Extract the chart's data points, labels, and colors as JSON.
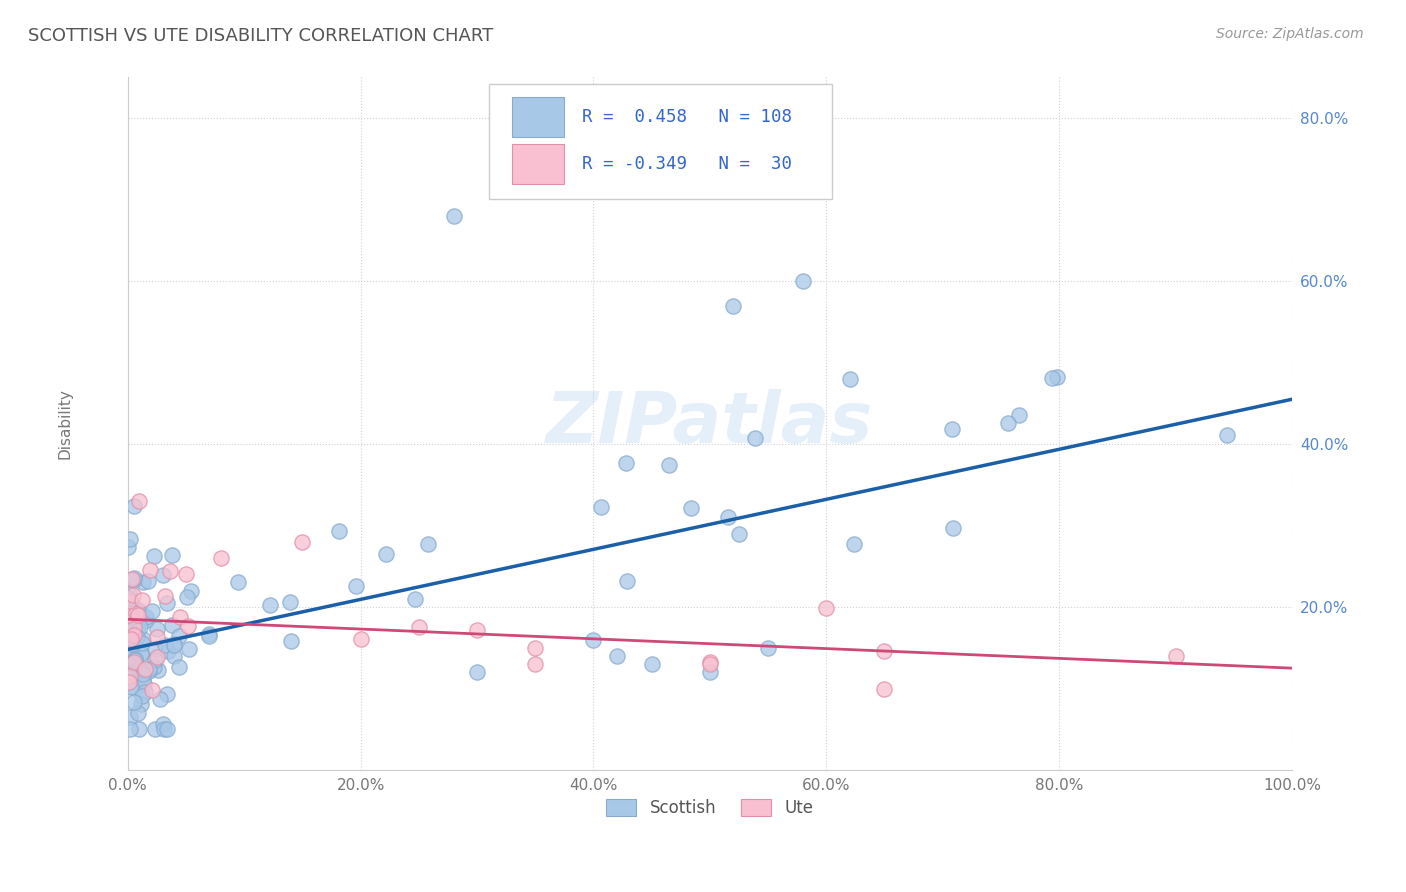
{
  "title": "SCOTTISH VS UTE DISABILITY CORRELATION CHART",
  "source": "Source: ZipAtlas.com",
  "ylabel": "Disability",
  "xlim": [
    0,
    1.0
  ],
  "ylim": [
    0,
    0.85
  ],
  "xticks": [
    0.0,
    0.2,
    0.4,
    0.6,
    0.8,
    1.0
  ],
  "yticks": [
    0.0,
    0.2,
    0.4,
    0.6,
    0.8
  ],
  "xticklabels": [
    "0.0%",
    "20.0%",
    "40.0%",
    "60.0%",
    "80.0%",
    "100.0%"
  ],
  "yticklabels_right": [
    "",
    "20.0%",
    "40.0%",
    "60.0%",
    "80.0%"
  ],
  "scottish_R": 0.458,
  "scottish_N": 108,
  "ute_R": -0.349,
  "ute_N": 30,
  "scottish_color": "#a8c8e8",
  "scottish_edge_color": "#88aacc",
  "scottish_line_color": "#1a5fa8",
  "ute_color": "#f8c0d0",
  "ute_edge_color": "#e090a8",
  "ute_line_color": "#d04878",
  "legend_text_color": "#3366cc",
  "background_color": "#ffffff",
  "grid_color": "#cccccc",
  "title_color": "#555555",
  "watermark": "ZIPatlas"
}
